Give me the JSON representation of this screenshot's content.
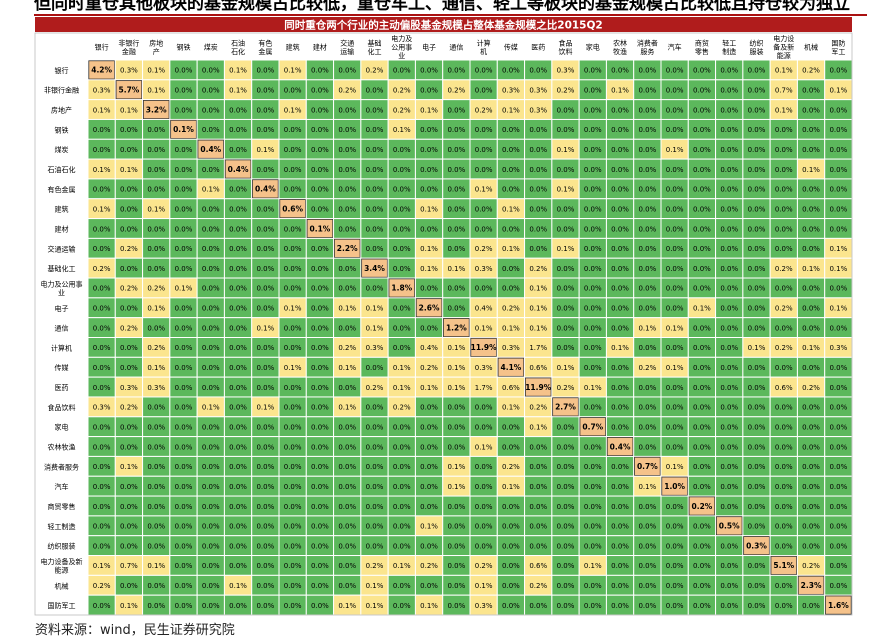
{
  "headline": "但同时重仓其他板块的基金规模占比较低，重仓车工、通信、轻工等板块的基金规模占比较低且持仓较为独立",
  "source": "资料来源：wind，民生证券研究院",
  "colors": {
    "title_bg": "#b01c1c",
    "high": "#f5c28a",
    "mid": "#fbe58e",
    "low": "#5cb85c",
    "grid": "#ffffff"
  },
  "chart_data": {
    "type": "heatmap",
    "title": "同时重仓两个行业的主动偏股基金规模占整体基金规模之比2015Q2",
    "columns": [
      "银行",
      "非银行金融",
      "房地产",
      "钢铁",
      "煤炭",
      "石油石化",
      "有色金属",
      "建筑",
      "建材",
      "交通运输",
      "基础化工",
      "电力及公用事业",
      "电子",
      "通信",
      "计算机",
      "传媒",
      "医药",
      "食品饮料",
      "家电",
      "农林牧渔",
      "消费者服务",
      "汽车",
      "商贸零售",
      "轻工制造",
      "纺织服装",
      "电力设备及新能源",
      "机械",
      "国防军工"
    ],
    "rows": [
      "银行",
      "非银行金融",
      "房地产",
      "钢铁",
      "煤炭",
      "石油石化",
      "有色金属",
      "建筑",
      "建材",
      "交通运输",
      "基础化工",
      "电力及公用事业",
      "电子",
      "通信",
      "计算机",
      "传媒",
      "医药",
      "食品饮料",
      "家电",
      "农林牧渔",
      "消费者服务",
      "汽车",
      "商贸零售",
      "轻工制造",
      "纺织服装",
      "电力设备及新能源",
      "机械",
      "国防军工"
    ],
    "values": [
      [
        "4.2%",
        "0.3%",
        "0.1%",
        "0.0%",
        "0.0%",
        "0.1%",
        "0.0%",
        "0.1%",
        "0.0%",
        "0.0%",
        "0.2%",
        "0.0%",
        "0.0%",
        "0.0%",
        "0.0%",
        "0.0%",
        "0.0%",
        "0.3%",
        "0.0%",
        "0.0%",
        "0.0%",
        "0.0%",
        "0.0%",
        "0.0%",
        "0.0%",
        "0.1%",
        "0.2%",
        "0.0%"
      ],
      [
        "0.3%",
        "5.7%",
        "0.1%",
        "0.0%",
        "0.0%",
        "0.1%",
        "0.0%",
        "0.0%",
        "0.0%",
        "0.2%",
        "0.0%",
        "0.2%",
        "0.0%",
        "0.2%",
        "0.0%",
        "0.3%",
        "0.3%",
        "0.2%",
        "0.0%",
        "0.1%",
        "0.0%",
        "0.0%",
        "0.0%",
        "0.0%",
        "0.0%",
        "0.7%",
        "0.0%",
        "0.1%"
      ],
      [
        "0.1%",
        "0.1%",
        "3.2%",
        "0.0%",
        "0.0%",
        "0.0%",
        "0.0%",
        "0.1%",
        "0.0%",
        "0.0%",
        "0.0%",
        "0.2%",
        "0.1%",
        "0.0%",
        "0.2%",
        "0.1%",
        "0.3%",
        "0.0%",
        "0.0%",
        "0.0%",
        "0.0%",
        "0.0%",
        "0.0%",
        "0.0%",
        "0.0%",
        "0.1%",
        "0.0%",
        "0.0%"
      ],
      [
        "0.0%",
        "0.0%",
        "0.0%",
        "0.1%",
        "0.0%",
        "0.0%",
        "0.0%",
        "0.0%",
        "0.0%",
        "0.0%",
        "0.0%",
        "0.1%",
        "0.0%",
        "0.0%",
        "0.0%",
        "0.0%",
        "0.0%",
        "0.0%",
        "0.0%",
        "0.0%",
        "0.0%",
        "0.0%",
        "0.0%",
        "0.0%",
        "0.0%",
        "0.0%",
        "0.0%",
        "0.0%"
      ],
      [
        "0.0%",
        "0.0%",
        "0.0%",
        "0.0%",
        "0.4%",
        "0.0%",
        "0.1%",
        "0.0%",
        "0.0%",
        "0.0%",
        "0.0%",
        "0.0%",
        "0.0%",
        "0.0%",
        "0.0%",
        "0.0%",
        "0.0%",
        "0.1%",
        "0.0%",
        "0.0%",
        "0.0%",
        "0.1%",
        "0.0%",
        "0.0%",
        "0.0%",
        "0.0%",
        "0.0%",
        "0.0%"
      ],
      [
        "0.1%",
        "0.1%",
        "0.0%",
        "0.0%",
        "0.0%",
        "0.4%",
        "0.0%",
        "0.0%",
        "0.0%",
        "0.0%",
        "0.0%",
        "0.0%",
        "0.0%",
        "0.0%",
        "0.0%",
        "0.0%",
        "0.0%",
        "0.0%",
        "0.0%",
        "0.0%",
        "0.0%",
        "0.0%",
        "0.0%",
        "0.0%",
        "0.0%",
        "0.0%",
        "0.1%",
        "0.0%"
      ],
      [
        "0.0%",
        "0.0%",
        "0.0%",
        "0.0%",
        "0.1%",
        "0.0%",
        "0.4%",
        "0.0%",
        "0.0%",
        "0.0%",
        "0.0%",
        "0.0%",
        "0.0%",
        "0.0%",
        "0.1%",
        "0.0%",
        "0.0%",
        "0.1%",
        "0.0%",
        "0.0%",
        "0.0%",
        "0.0%",
        "0.0%",
        "0.0%",
        "0.0%",
        "0.0%",
        "0.0%",
        "0.0%"
      ],
      [
        "0.1%",
        "0.0%",
        "0.1%",
        "0.0%",
        "0.0%",
        "0.0%",
        "0.0%",
        "0.6%",
        "0.0%",
        "0.0%",
        "0.0%",
        "0.0%",
        "0.1%",
        "0.0%",
        "0.0%",
        "0.1%",
        "0.0%",
        "0.0%",
        "0.0%",
        "0.0%",
        "0.0%",
        "0.0%",
        "0.0%",
        "0.0%",
        "0.0%",
        "0.0%",
        "0.0%",
        "0.0%"
      ],
      [
        "0.0%",
        "0.0%",
        "0.0%",
        "0.0%",
        "0.0%",
        "0.0%",
        "0.0%",
        "0.0%",
        "0.1%",
        "0.0%",
        "0.0%",
        "0.0%",
        "0.0%",
        "0.0%",
        "0.0%",
        "0.0%",
        "0.0%",
        "0.0%",
        "0.0%",
        "0.0%",
        "0.0%",
        "0.0%",
        "0.0%",
        "0.0%",
        "0.0%",
        "0.0%",
        "0.0%",
        "0.0%"
      ],
      [
        "0.0%",
        "0.2%",
        "0.0%",
        "0.0%",
        "0.0%",
        "0.0%",
        "0.0%",
        "0.0%",
        "0.0%",
        "2.2%",
        "0.0%",
        "0.0%",
        "0.1%",
        "0.0%",
        "0.2%",
        "0.1%",
        "0.0%",
        "0.1%",
        "0.0%",
        "0.0%",
        "0.0%",
        "0.0%",
        "0.0%",
        "0.0%",
        "0.0%",
        "0.0%",
        "0.0%",
        "0.1%"
      ],
      [
        "0.2%",
        "0.0%",
        "0.0%",
        "0.0%",
        "0.0%",
        "0.0%",
        "0.0%",
        "0.0%",
        "0.0%",
        "0.0%",
        "3.4%",
        "0.0%",
        "0.1%",
        "0.1%",
        "0.3%",
        "0.0%",
        "0.2%",
        "0.0%",
        "0.0%",
        "0.0%",
        "0.0%",
        "0.0%",
        "0.0%",
        "0.0%",
        "0.0%",
        "0.2%",
        "0.1%",
        "0.1%"
      ],
      [
        "0.0%",
        "0.2%",
        "0.2%",
        "0.1%",
        "0.0%",
        "0.0%",
        "0.0%",
        "0.0%",
        "0.0%",
        "0.0%",
        "0.0%",
        "1.8%",
        "0.0%",
        "0.0%",
        "0.0%",
        "0.0%",
        "0.1%",
        "0.0%",
        "0.0%",
        "0.0%",
        "0.0%",
        "0.0%",
        "0.0%",
        "0.0%",
        "0.0%",
        "0.0%",
        "0.0%",
        "0.0%"
      ],
      [
        "0.0%",
        "0.0%",
        "0.1%",
        "0.0%",
        "0.0%",
        "0.0%",
        "0.0%",
        "0.1%",
        "0.0%",
        "0.1%",
        "0.1%",
        "0.0%",
        "2.6%",
        "0.0%",
        "0.4%",
        "0.2%",
        "0.1%",
        "0.0%",
        "0.0%",
        "0.0%",
        "0.0%",
        "0.0%",
        "0.1%",
        "0.0%",
        "0.0%",
        "0.2%",
        "0.0%",
        "0.1%"
      ],
      [
        "0.0%",
        "0.2%",
        "0.0%",
        "0.0%",
        "0.0%",
        "0.0%",
        "0.1%",
        "0.0%",
        "0.0%",
        "0.0%",
        "0.1%",
        "0.0%",
        "0.0%",
        "1.2%",
        "0.1%",
        "0.1%",
        "0.1%",
        "0.0%",
        "0.0%",
        "0.0%",
        "0.1%",
        "0.1%",
        "0.0%",
        "0.0%",
        "0.0%",
        "0.0%",
        "0.0%",
        "0.0%"
      ],
      [
        "0.0%",
        "0.0%",
        "0.2%",
        "0.0%",
        "0.0%",
        "0.0%",
        "0.0%",
        "0.0%",
        "0.0%",
        "0.2%",
        "0.3%",
        "0.0%",
        "0.4%",
        "0.1%",
        "11.9%",
        "0.3%",
        "1.7%",
        "0.0%",
        "0.0%",
        "0.1%",
        "0.0%",
        "0.0%",
        "0.0%",
        "0.0%",
        "0.1%",
        "0.2%",
        "0.1%",
        "0.3%"
      ],
      [
        "0.0%",
        "0.0%",
        "0.1%",
        "0.0%",
        "0.0%",
        "0.0%",
        "0.0%",
        "0.1%",
        "0.0%",
        "0.1%",
        "0.0%",
        "0.1%",
        "0.2%",
        "0.1%",
        "0.3%",
        "4.1%",
        "0.6%",
        "0.1%",
        "0.0%",
        "0.0%",
        "0.2%",
        "0.1%",
        "0.0%",
        "0.0%",
        "0.0%",
        "0.0%",
        "0.0%",
        "0.0%"
      ],
      [
        "0.0%",
        "0.3%",
        "0.3%",
        "0.0%",
        "0.0%",
        "0.0%",
        "0.0%",
        "0.0%",
        "0.0%",
        "0.0%",
        "0.2%",
        "0.1%",
        "0.1%",
        "0.1%",
        "1.7%",
        "0.6%",
        "11.9%",
        "0.2%",
        "0.1%",
        "0.0%",
        "0.0%",
        "0.0%",
        "0.0%",
        "0.0%",
        "0.0%",
        "0.6%",
        "0.2%",
        "0.0%"
      ],
      [
        "0.3%",
        "0.2%",
        "0.0%",
        "0.0%",
        "0.1%",
        "0.0%",
        "0.1%",
        "0.0%",
        "0.0%",
        "0.1%",
        "0.0%",
        "0.2%",
        "0.0%",
        "0.0%",
        "0.0%",
        "0.1%",
        "0.2%",
        "2.7%",
        "0.0%",
        "0.0%",
        "0.0%",
        "0.0%",
        "0.0%",
        "0.0%",
        "0.0%",
        "0.0%",
        "0.0%",
        "0.0%"
      ],
      [
        "0.0%",
        "0.0%",
        "0.0%",
        "0.0%",
        "0.0%",
        "0.0%",
        "0.0%",
        "0.0%",
        "0.0%",
        "0.0%",
        "0.0%",
        "0.0%",
        "0.0%",
        "0.0%",
        "0.0%",
        "0.0%",
        "0.1%",
        "0.0%",
        "0.7%",
        "0.0%",
        "0.0%",
        "0.0%",
        "0.0%",
        "0.0%",
        "0.0%",
        "0.0%",
        "0.0%",
        "0.0%"
      ],
      [
        "0.0%",
        "0.0%",
        "0.0%",
        "0.0%",
        "0.0%",
        "0.0%",
        "0.0%",
        "0.0%",
        "0.0%",
        "0.0%",
        "0.0%",
        "0.0%",
        "0.0%",
        "0.0%",
        "0.1%",
        "0.0%",
        "0.0%",
        "0.0%",
        "0.0%",
        "0.4%",
        "0.0%",
        "0.0%",
        "0.0%",
        "0.0%",
        "0.0%",
        "0.0%",
        "0.0%",
        "0.0%"
      ],
      [
        "0.0%",
        "0.1%",
        "0.0%",
        "0.0%",
        "0.0%",
        "0.0%",
        "0.0%",
        "0.0%",
        "0.0%",
        "0.0%",
        "0.0%",
        "0.0%",
        "0.0%",
        "0.1%",
        "0.0%",
        "0.2%",
        "0.0%",
        "0.0%",
        "0.0%",
        "0.0%",
        "0.7%",
        "0.1%",
        "0.0%",
        "0.0%",
        "0.0%",
        "0.0%",
        "0.0%",
        "0.0%"
      ],
      [
        "0.0%",
        "0.0%",
        "0.0%",
        "0.0%",
        "0.0%",
        "0.0%",
        "0.0%",
        "0.0%",
        "0.0%",
        "0.0%",
        "0.0%",
        "0.0%",
        "0.0%",
        "0.1%",
        "0.0%",
        "0.1%",
        "0.0%",
        "0.0%",
        "0.0%",
        "0.0%",
        "0.1%",
        "1.0%",
        "0.0%",
        "0.0%",
        "0.0%",
        "0.0%",
        "0.0%",
        "0.0%"
      ],
      [
        "0.0%",
        "0.0%",
        "0.0%",
        "0.0%",
        "0.0%",
        "0.0%",
        "0.0%",
        "0.0%",
        "0.0%",
        "0.0%",
        "0.0%",
        "0.0%",
        "0.0%",
        "0.0%",
        "0.0%",
        "0.0%",
        "0.0%",
        "0.0%",
        "0.0%",
        "0.0%",
        "0.0%",
        "0.0%",
        "0.2%",
        "0.0%",
        "0.0%",
        "0.0%",
        "0.0%",
        "0.0%"
      ],
      [
        "0.0%",
        "0.0%",
        "0.0%",
        "0.0%",
        "0.0%",
        "0.0%",
        "0.0%",
        "0.0%",
        "0.0%",
        "0.0%",
        "0.0%",
        "0.0%",
        "0.1%",
        "0.0%",
        "0.0%",
        "0.0%",
        "0.0%",
        "0.0%",
        "0.0%",
        "0.0%",
        "0.0%",
        "0.0%",
        "0.0%",
        "0.5%",
        "0.0%",
        "0.0%",
        "0.0%",
        "0.0%"
      ],
      [
        "0.0%",
        "0.0%",
        "0.0%",
        "0.0%",
        "0.0%",
        "0.0%",
        "0.0%",
        "0.0%",
        "0.0%",
        "0.0%",
        "0.0%",
        "0.0%",
        "0.0%",
        "0.0%",
        "0.0%",
        "0.0%",
        "0.0%",
        "0.0%",
        "0.0%",
        "0.0%",
        "0.0%",
        "0.0%",
        "0.0%",
        "0.0%",
        "0.3%",
        "0.0%",
        "0.0%",
        "0.0%"
      ],
      [
        "0.1%",
        "0.7%",
        "0.1%",
        "0.0%",
        "0.0%",
        "0.0%",
        "0.0%",
        "0.0%",
        "0.0%",
        "0.0%",
        "0.2%",
        "0.1%",
        "0.2%",
        "0.0%",
        "0.2%",
        "0.0%",
        "0.6%",
        "0.0%",
        "0.1%",
        "0.0%",
        "0.0%",
        "0.0%",
        "0.0%",
        "0.0%",
        "0.0%",
        "5.1%",
        "0.2%",
        "0.0%"
      ],
      [
        "0.2%",
        "0.0%",
        "0.0%",
        "0.0%",
        "0.0%",
        "0.1%",
        "0.0%",
        "0.0%",
        "0.0%",
        "0.0%",
        "0.1%",
        "0.0%",
        "0.0%",
        "0.0%",
        "0.1%",
        "0.0%",
        "0.2%",
        "0.0%",
        "0.0%",
        "0.0%",
        "0.0%",
        "0.0%",
        "0.0%",
        "0.0%",
        "0.0%",
        "0.0%",
        "2.3%",
        "0.0%"
      ],
      [
        "0.0%",
        "0.1%",
        "0.0%",
        "0.0%",
        "0.0%",
        "0.0%",
        "0.0%",
        "0.0%",
        "0.0%",
        "0.1%",
        "0.1%",
        "0.0%",
        "0.1%",
        "0.0%",
        "0.3%",
        "0.0%",
        "0.0%",
        "0.0%",
        "0.0%",
        "0.0%",
        "0.0%",
        "0.0%",
        "0.0%",
        "0.0%",
        "0.0%",
        "0.0%",
        "0.0%",
        "1.6%"
      ]
    ]
  }
}
